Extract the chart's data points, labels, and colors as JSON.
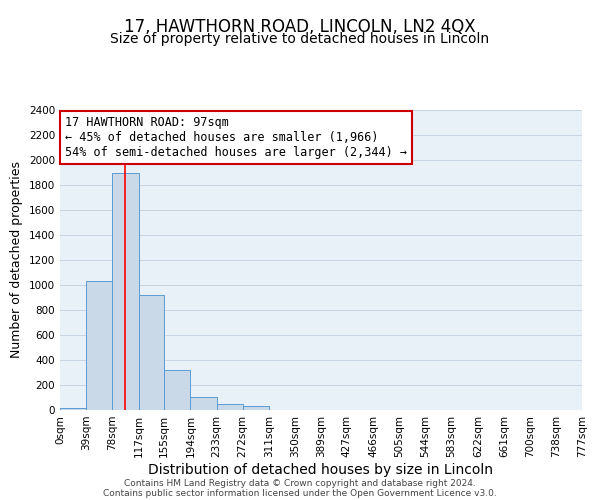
{
  "title": "17, HAWTHORN ROAD, LINCOLN, LN2 4QX",
  "subtitle": "Size of property relative to detached houses in Lincoln",
  "xlabel": "Distribution of detached houses by size in Lincoln",
  "ylabel": "Number of detached properties",
  "bin_edges": [
    0,
    39,
    78,
    117,
    155,
    194,
    233,
    272,
    311,
    350,
    389,
    427,
    466,
    505,
    544,
    583,
    622,
    661,
    700,
    738,
    777
  ],
  "bin_labels": [
    "0sqm",
    "39sqm",
    "78sqm",
    "117sqm",
    "155sqm",
    "194sqm",
    "233sqm",
    "272sqm",
    "311sqm",
    "350sqm",
    "389sqm",
    "427sqm",
    "466sqm",
    "505sqm",
    "544sqm",
    "583sqm",
    "622sqm",
    "661sqm",
    "700sqm",
    "738sqm",
    "777sqm"
  ],
  "counts": [
    20,
    1030,
    1900,
    920,
    320,
    105,
    50,
    30,
    0,
    0,
    0,
    0,
    0,
    0,
    0,
    0,
    0,
    0,
    0,
    0
  ],
  "bar_color": "#c9d9e8",
  "bar_edge_color": "#5b9bd5",
  "property_line_x": 97,
  "property_line_color": "red",
  "annotation_line1": "17 HAWTHORN ROAD: 97sqm",
  "annotation_line2": "← 45% of detached houses are smaller (1,966)",
  "annotation_line3": "54% of semi-detached houses are larger (2,344) →",
  "annotation_box_color": "white",
  "annotation_box_edge_color": "#cc0000",
  "ylim": [
    0,
    2400
  ],
  "yticks": [
    0,
    200,
    400,
    600,
    800,
    1000,
    1200,
    1400,
    1600,
    1800,
    2000,
    2200,
    2400
  ],
  "grid_color": "#c0cfe0",
  "background_color": "#e8f0f8",
  "footer_line1": "Contains HM Land Registry data © Crown copyright and database right 2024.",
  "footer_line2": "Contains public sector information licensed under the Open Government Licence v3.0.",
  "title_fontsize": 12,
  "subtitle_fontsize": 10,
  "xlabel_fontsize": 10,
  "ylabel_fontsize": 9,
  "tick_fontsize": 7.5,
  "annotation_fontsize": 8.5,
  "footer_fontsize": 6.5
}
